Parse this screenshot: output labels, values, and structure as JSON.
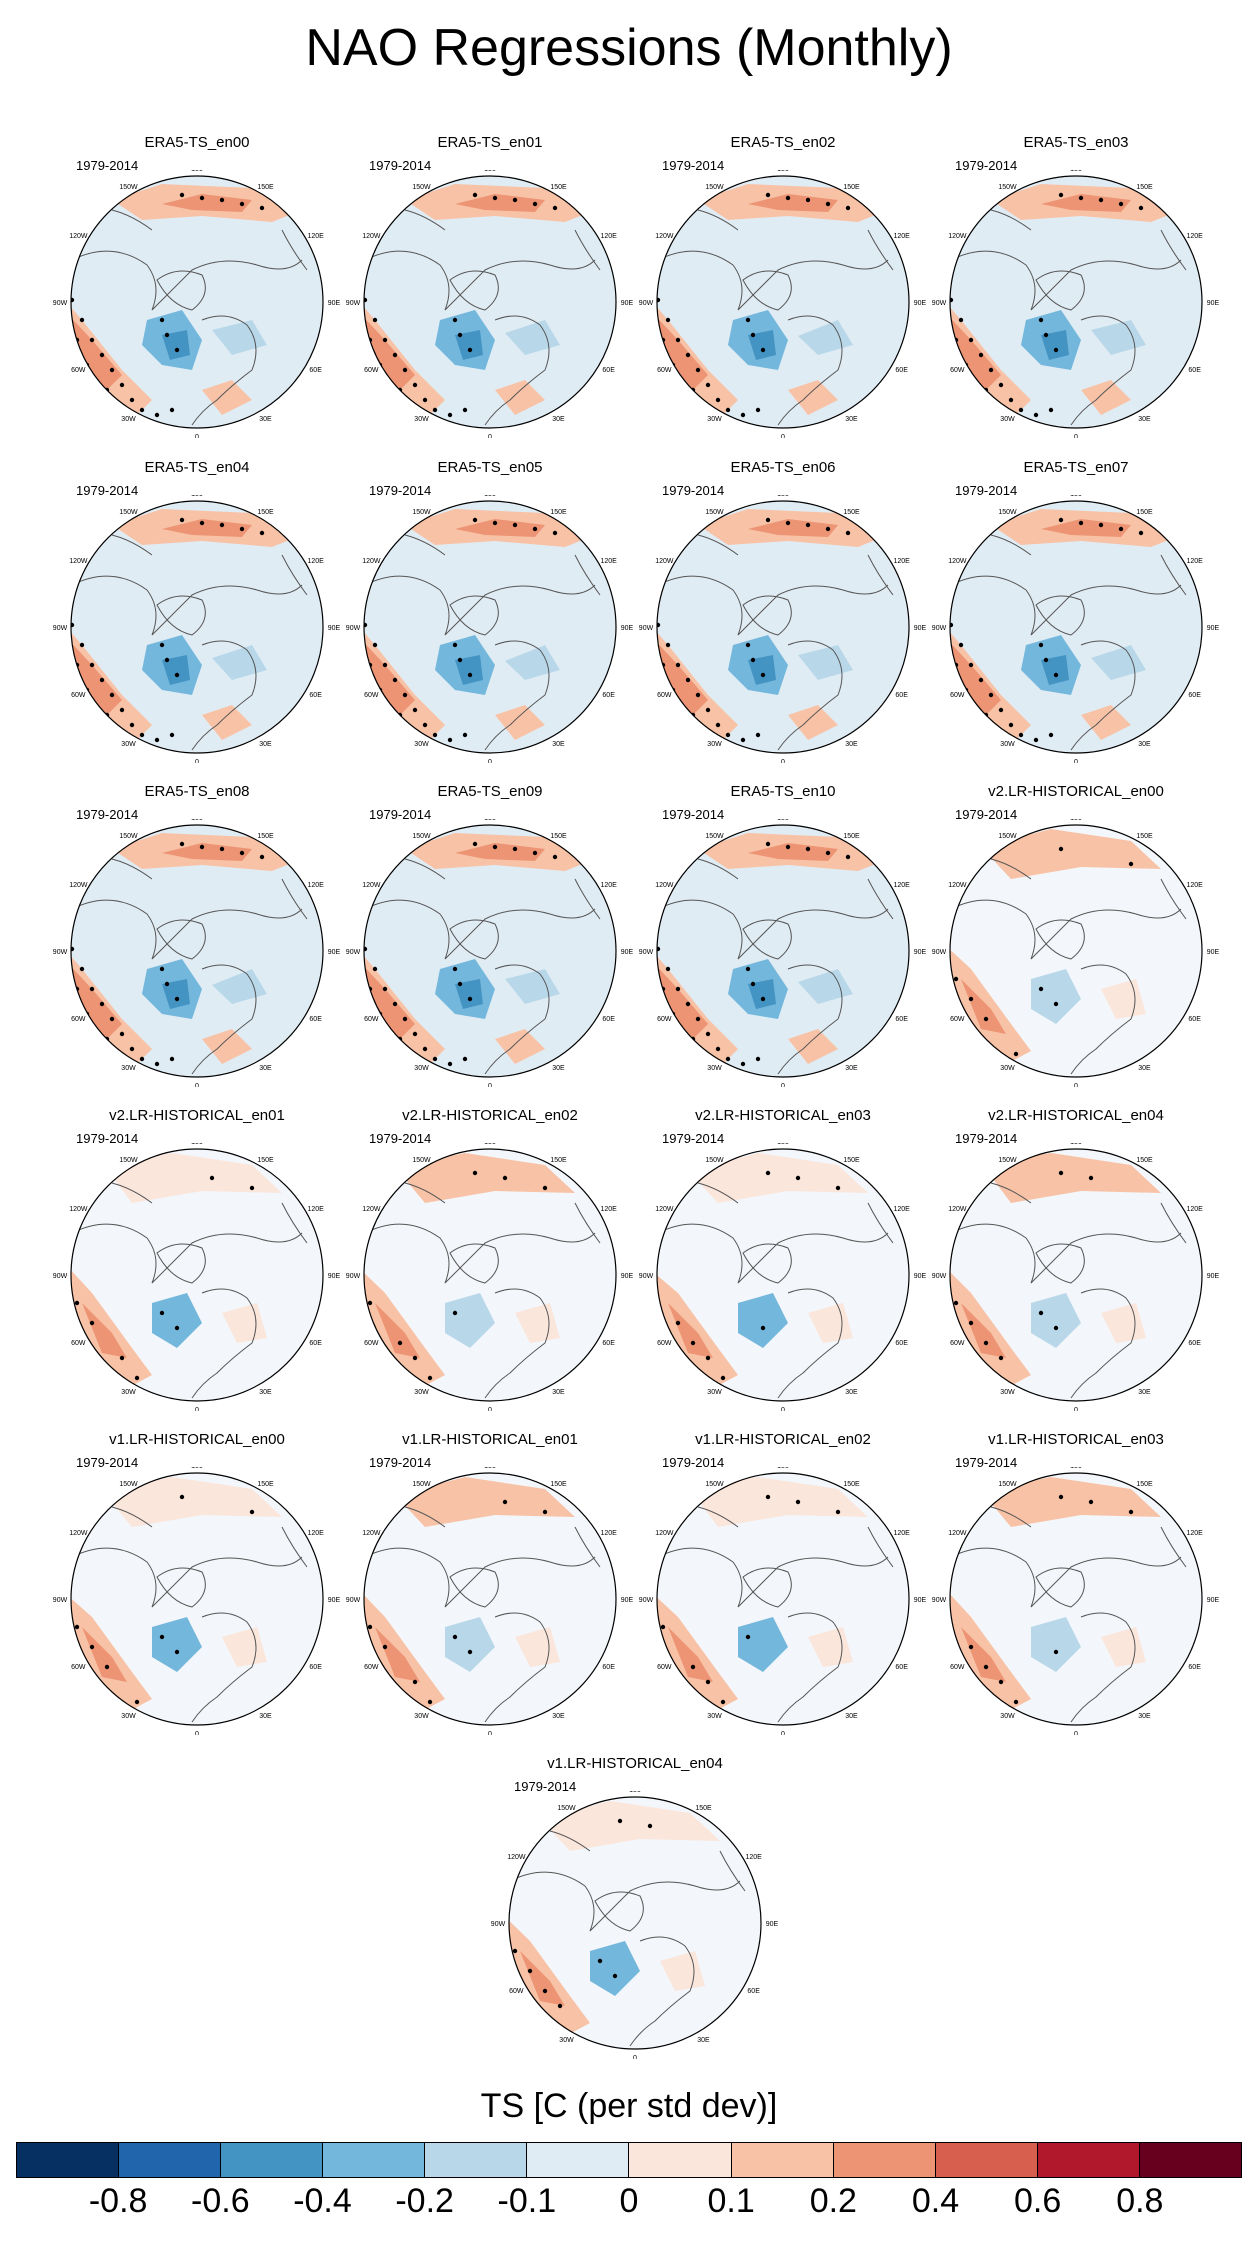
{
  "title": "NAO Regressions (Monthly)",
  "period": "1979-2014",
  "lon_labels": [
    "180",
    "150E",
    "120E",
    "90E",
    "60E",
    "30E",
    "0",
    "30W",
    "60W",
    "90W",
    "120W",
    "150W"
  ],
  "panels": [
    {
      "title": "ERA5-TS_en00",
      "pattern": "era5"
    },
    {
      "title": "ERA5-TS_en01",
      "pattern": "era5"
    },
    {
      "title": "ERA5-TS_en02",
      "pattern": "era5"
    },
    {
      "title": "ERA5-TS_en03",
      "pattern": "era5"
    },
    {
      "title": "ERA5-TS_en04",
      "pattern": "era5"
    },
    {
      "title": "ERA5-TS_en05",
      "pattern": "era5"
    },
    {
      "title": "ERA5-TS_en06",
      "pattern": "era5"
    },
    {
      "title": "ERA5-TS_en07",
      "pattern": "era5"
    },
    {
      "title": "ERA5-TS_en08",
      "pattern": "era5"
    },
    {
      "title": "ERA5-TS_en09",
      "pattern": "era5"
    },
    {
      "title": "ERA5-TS_en10",
      "pattern": "era5"
    },
    {
      "title": "v2.LR-HISTORICAL_en00",
      "pattern": "model"
    },
    {
      "title": "v2.LR-HISTORICAL_en01",
      "pattern": "model"
    },
    {
      "title": "v2.LR-HISTORICAL_en02",
      "pattern": "model"
    },
    {
      "title": "v2.LR-HISTORICAL_en03",
      "pattern": "model"
    },
    {
      "title": "v2.LR-HISTORICAL_en04",
      "pattern": "model"
    },
    {
      "title": "v1.LR-HISTORICAL_en00",
      "pattern": "model"
    },
    {
      "title": "v1.LR-HISTORICAL_en01",
      "pattern": "model"
    },
    {
      "title": "v1.LR-HISTORICAL_en02",
      "pattern": "model"
    },
    {
      "title": "v1.LR-HISTORICAL_en03",
      "pattern": "model"
    },
    {
      "title": "v1.LR-HISTORICAL_en04",
      "pattern": "model"
    }
  ],
  "colorbar": {
    "title": "TS [C (per std dev)]",
    "colors": [
      "#053061",
      "#2166ac",
      "#4393c3",
      "#74b7dc",
      "#b8d8ea",
      "#e0ecf4",
      "#fbe6dc",
      "#f8c2a6",
      "#ec9474",
      "#d6604d",
      "#b2182b",
      "#67001f"
    ],
    "labels": [
      "-0.8",
      "-0.6",
      "-0.4",
      "-0.2",
      "-0.1",
      "0",
      "0.1",
      "0.2",
      "0.4",
      "0.6",
      "0.8"
    ]
  }
}
